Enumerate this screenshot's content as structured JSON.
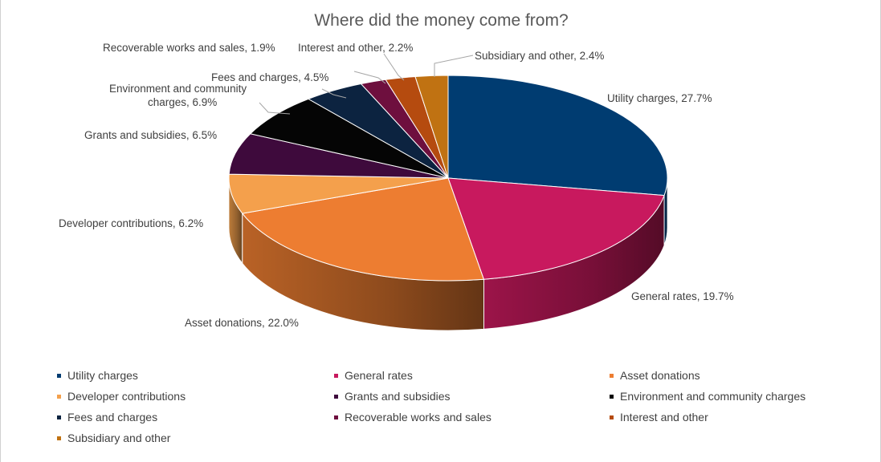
{
  "chart_data": {
    "type": "pie",
    "title": "Where did the money come from?",
    "slices": [
      {
        "name": "Utility charges",
        "value": 27.7,
        "label": "Utility charges, 27.7%",
        "color": "#003C71"
      },
      {
        "name": "General rates",
        "value": 19.7,
        "label": "General rates, 19.7%",
        "color": "#C8195E"
      },
      {
        "name": "Asset donations",
        "value": 22.0,
        "label": "Asset donations, 22.0%",
        "color": "#ED7D31"
      },
      {
        "name": "Developer contributions",
        "value": 6.2,
        "label": "Developer contributions, 6.2%",
        "color": "#F4A04C"
      },
      {
        "name": "Grants and subsidies",
        "value": 6.5,
        "label": "Grants and subsidies, 6.5%",
        "color": "#3E0A3C"
      },
      {
        "name": "Environment and community charges",
        "value": 6.9,
        "label": [
          "Environment and community",
          "charges, 6.9%"
        ],
        "color": "#050505"
      },
      {
        "name": "Fees and charges",
        "value": 4.5,
        "label": "Fees and charges, 4.5%",
        "color": "#0C2340"
      },
      {
        "name": "Recoverable works and sales",
        "value": 1.9,
        "label": "Recoverable works and sales, 1.9%",
        "color": "#6E0F3E"
      },
      {
        "name": "Interest and other",
        "value": 2.2,
        "label": "Interest and other, 2.2%",
        "color": "#B54B0F"
      },
      {
        "name": "Subsidiary and other",
        "value": 2.4,
        "label": "Subsidiary and other, 2.4%",
        "color": "#C07212"
      }
    ],
    "legend_placement": "bottom"
  }
}
